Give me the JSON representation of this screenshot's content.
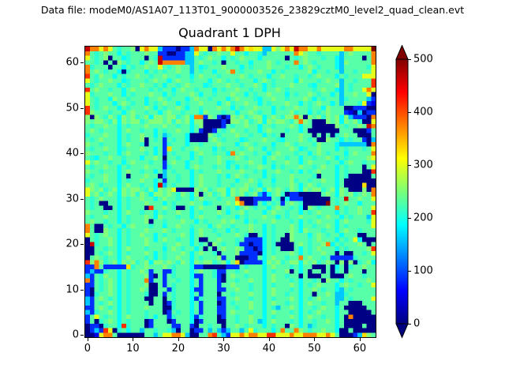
{
  "header": {
    "data_file_label": "Data file: modeM0/AS1A07_113T01_9000003526_23829cztM0_level2_quad_clean.evt"
  },
  "chart_data": {
    "type": "heatmap",
    "title": "Quadrant 1 DPH",
    "colormap": "jet",
    "grid": false,
    "x_ticks": [
      0,
      10,
      20,
      30,
      40,
      50,
      60
    ],
    "y_ticks": [
      0,
      10,
      20,
      30,
      40,
      50,
      60
    ],
    "x_range": [
      -0.5,
      63.5
    ],
    "y_range": [
      -0.5,
      63.5
    ],
    "colorbar": {
      "ticks": [
        0,
        100,
        200,
        300,
        400,
        500
      ],
      "vmin": 0,
      "vmax": 500,
      "extend": "both",
      "over_color": "#7f0000",
      "under_color": "#00007f"
    },
    "palette": {
      ".": 230,
      ",": 210,
      ";": 252,
      "e": 190,
      "c": 160,
      "d": 125,
      "b": 85,
      "B": 50,
      "N": 2,
      "y": 300,
      "Y": 330,
      "o": 375,
      "O": 415,
      "r": 465,
      "R": 540
    },
    "rows_top_to_bottom": [
      "rooyoy.,..;NyoyycbbbNbbcoyyNoyoyoroyYyyccy;yoyrooyyoyyyyyooyyyyR",
      "o.,.;..e.,...;..bbNNbbccy.,..;..y..e..,c......oy;..,....c.;....o",
      "y.,.;N..e,...N.,rbbbbbcc.,.;..e.,.;...e.....N.,.;...,..ec....N.o",
      "..,.N.N;.,..e.;.rooooocc.;..,.N..,..e...;.,...o.;.,....ec;.....o",
      "o,...N..e.,..;..y.,.;..c.e,...;...e.,...;...,..e.;.,...ec.....,y",
      "o.;.,..eN,...e.,.,..;..c.,..e..;o.,...;..e.,.....;e..,..c..,...y",
      "O.,;..e.,..;..,..;..,..e.;...,....;.,...e..;..,..,.;...e.,...yyy",
      "y.,..;..e,...,.;..e.;..,...e.;.,.,...e.;.,....e;...,.;..c..,...O",
      ".,.;...e.,..;..,.e..,.;...e,...;..,..;.e.,...;...,e....;c.,....O",
      "O.;..,..e.;...,.,..e.;..,...e.,..;..,..e..;.,.....,.;..ec.,..yoy",
      "y,...;..e.,...;..e.,...;.e..,...;..e.,..;...e.,..;.,..e.c..;..yN",
      "y.,..e;..,...e..;.,...e.;..,...e.;...,e..;..,...;.e.,...c,....cb",
      "y.,...e.;.,..e.,.;..e.,..;...e.;,..;..e.,...;..e.,.;..e.c...,ybB",
      "O.,.;..e.,...;.e.,..;.e..,...;..e.,..;...e.,..;..,..e;...NNbbbNN",
      "O;...,..e.;..,..e.;..,...e;...,..e..;.,..e...;,..e.,.;...bBNcNbb",
      ";N;.,;.e;.;,.;e;;.;;,.;eoob;.bNb;.;,.;;e.;.,;;o;N;.;,;.;e;cbbbNo",
      ";.;;.,;e;.;;,.;;;.;,;.;e;;NNNNbN;;.;,.;e;.;;.,;o;.NNN;.;e;.;,NNy",
      ".,..;..e.,...;...;..,..e.;NNNNb.,..;..e..,...;.e..NNNNN;.,..;.ro",
      ".;.,...e.;..,..e.,..;..e.bNNb.,.;..,..e.;...,..e.NNNNNNN...NNNb.",
      ",...;..e.,..;..e.c,...eNNNN;.,...;..,..e.,.N...;..N.N.N,.;..NNN.",
      ".,.;...e.,..;N.,.b.,..eNNNN.;.,...e,...;..,e...;.,.NN;..e.,..bNc",
      ";..,...e.;..,N...b,...e..,...;...e.;.,...e..;.,...,;...eccccccNo",
      ".,..;..e,...;..e.bY..,..;...e.,...,.;..e.,...;.e,..;...e.,...,.y",
      ";...,..e.;...,.e.b.,...e.;..,..eo.;..,..e.;...,..e.;.,...e.;...o",
      ".,e..;..,...e..;.N..,..e.,...;...;.,...e.;..,..e..,..;.e.,....;y",
      "y.;..,..e.;...,..b.;..e..,...;.e,...;..e.,..;..e.;...,..e.;..,..",
      ".,..;..e.,...;...b,...e.;...,..e.e.,..;..e.,...;..,.;..e.,...N.y",
      ";..,...e.;..,..e.c.,...e.,...;....;..,.e..;..,.e.,.;...e.,...NNO",
      ".,..;..e.N...;..Nc..,..e.;...,.e.;.,...e.,...;....,N...e.,NNNNN.",
      ",...;..e.,..;..e.b..,..e.;...,...e..;.,..e...;,..,..;..e.NNNNNNN",
      ".;.,...e.;..,..erc.,...e.;...,..,..;..e..,...;.e.;.,...e.NNNNYNN",
      "y;.;,.;e;.;;.,;e;.;yNNNN;.;,.;;e;.;;,.;e;.;.,;.e;.;;,.;e;.NNN;No",
      "y.;,.;.e;.;,;.e;;.;.,;.e;N.;,.;e;.;,.;cbe.;,NbbNNNNN.;.e;.;,.;.o",
      ".,.;...e.,..;..e.;..,..e.;...,...oNNNbbbb.,NebbbNNNNNN.,.r..;..y",
      ".,.NN..e.,...;...e.,...;..e,...;.yoNNb.e.,.b.;.,NNNNNR.,.;..e...",
      ".,..NN.e.,...NO..;.,NN.e.;...N.,.e.;.,..e.;..,.eN;.,...o.,..;..y",
      ";...,..e.;..,..e.,..;..e.,...;.e..;,...e.;..,..e.,.;...e.,..;..O",
      ".,..;..e.,...;.e;...,..e.;...,...e.,...;..e.,..;...,.;..e.,...cy",
      ".;..,..e.,...;N..,...;..e.,...;.;..e.,...;...,.e.,.;...e.;....,y",
      "o.NN.,..e.;...,..e..;..,...e.;..,...;..e.,...;.e..,..;.e.,.....y",
      "o.NN;..e.,...;...;.,...e.;..,..e.,..;..e.,...;.e;...,..e.;..,...",
      "y.,.;..e.,..;..e.,...;.e.;...,...;.,NN.e.,..N;...e.;.,..e...NN..",
      "N.,..;.e.,...;.e.;..,..e.NN..;...,.bbbbe.,.NN;...,.;...e.,.yeNNN",
      "Nr,..;.e.,...;...,..;..e.,.N;.,..,bbNbbe.,NNNN.;.,..;oe.,...;.N.",
      "NN..,..e.;...,...e.;.,..e.N.N.;..;.bbNbe.,.NNN.e.,.;...e.,....;O",
      "NN.,.;.e.,...;.e.,...;.e.;..,N...;bbbbNe.,...;.e.,..;..N.NN..,.y",
      "N.;.,..e.;...,.e.,..;..e.,...;b..NNNbb.e.;..,..o.;..,.bbbbb,....",
      "O;o;,.;e;.;,.;e;;.;.,;.e;.;;,.;e;YNbbbbe;.;,.;;e;.;,.;.N;N;N,.;e",
      "bbo.bbbbbY,..;...;.,...ebbNNNNNbbb.,...e.;...,.e..NNN.Ne.N,..;..",
      "bcbb,..e.,..;.b..bb,...e.;..,bb..,.;...e.,..;N.e.N..N.N,.N...N..",
      "cb.,;..e.,...;bN.b.,...ebb..,bN.;..,...e.;..,..N.NNN..NNN.;..,..",
      "ob.,.;.e.,...ob..b..,..e.b...bN..,..;..e.;...,.e..,.N;..e.,...;.",
      "bb.,.;.e.,...;NN.b.,...e.b...b..;...,..e.,...;.e.,.;...e.;..,..y",
      "bN.,.;.e.,..;.NN..b,...ebb...bb..;..,..e.;...,.e..;.,..ec.,.....",
      "bN,..;.e.,...,NN.b.,...e.b...N..,...;..e.;..,..e..N..;.cc,......",
      "cb.;.,.e.,...NN..N.,...eb,...bb..;..,..e.,...;.e.,.;...cc.,....y",
      "cb.,.;.e.,....N..Nb,...e.b...Nb.,...;..e.;..,..e.;..,..c..NNN...",
      "bb.;.,.e.,...;...NN,...e.b...bb..,..;..e.,c..;.e..,.;..e.NNNNN..",
      "cb,..;.e.,...,...Nb.,..e.b...bb.;...,..e.;...,.e.,.;...e..NNNNN.",
      "b.y.,..e.;...,.e..b,...eb,...Nb..,..;..e.,...;.e.;..,..e.NoNNNNN",
      "b.N,.;.e.,...Nb...Nb...eNb...NN..,..;.ce.;...,.e..,..;.e.NNNNNNN",
      "NbbN,..eO,...Nb....bb..bN..,..N..;.,...e.,..N;.e.c,....e.NNNN.NN",
      "NbcbOyN,.e..c..,..,cN..Nbb.c.cbc..c.y,...e.o..o;.,..;..eNN.NNNNN",
      "NNByoo.NNNNNN..c.yyooycNN..oO.cbyyoyooyyOOyyyoyyoooyyoy.NNNbcY;."
    ]
  }
}
